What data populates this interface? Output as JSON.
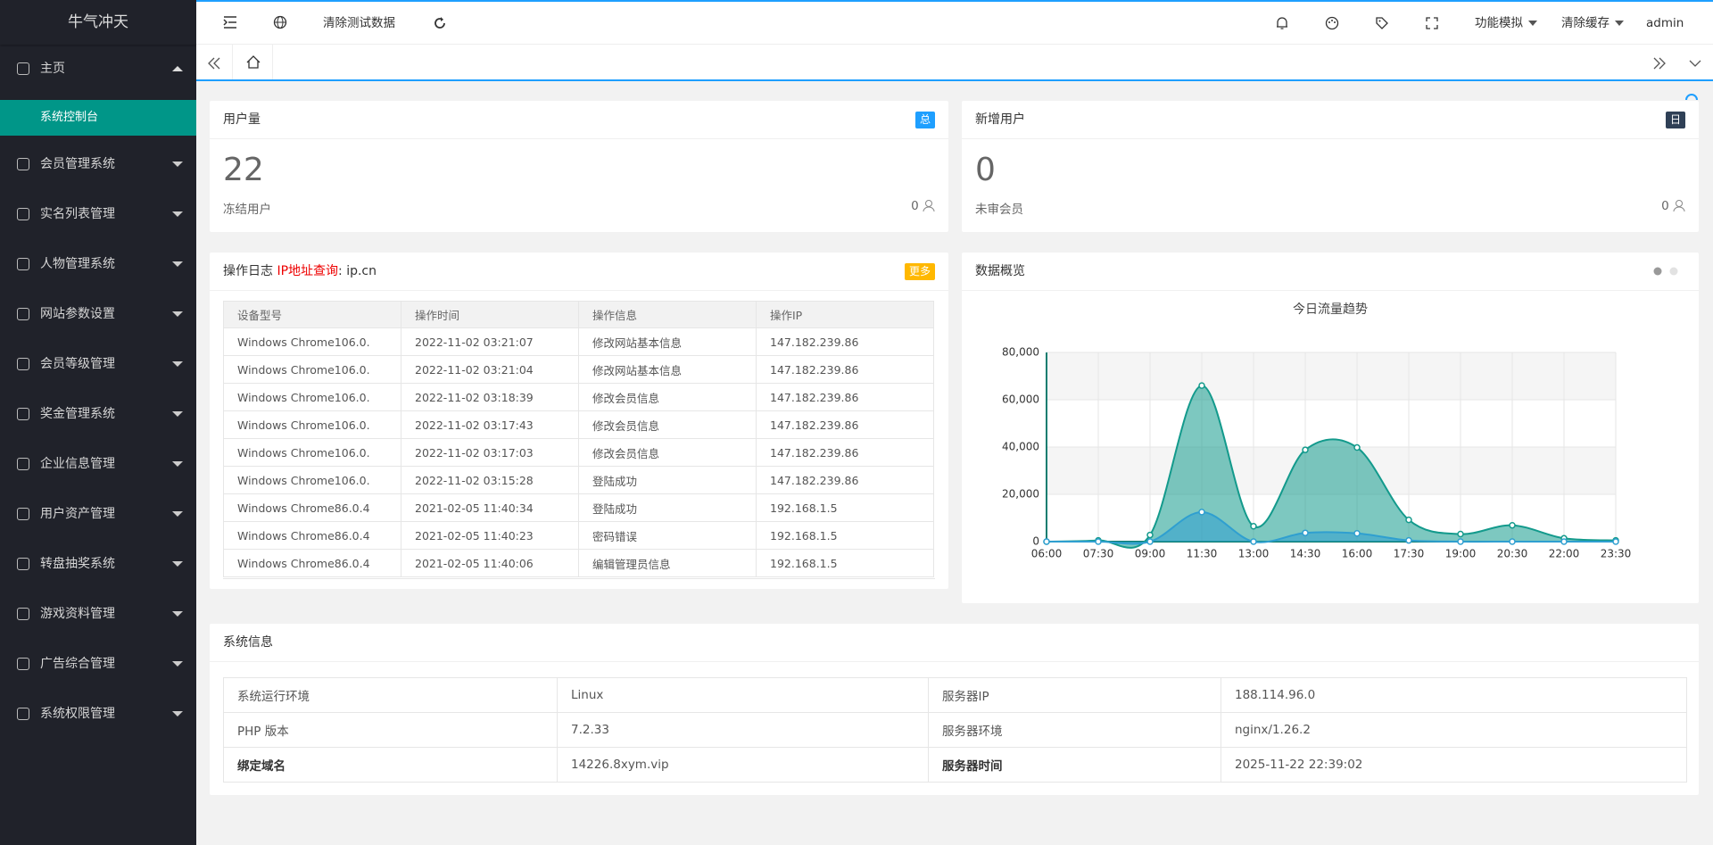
{
  "sidebar": {
    "logo": "牛气冲天",
    "home": "主页",
    "active_item": "系统控制台",
    "menu": [
      "会员管理系统",
      "实名列表管理",
      "人物管理系统",
      "网站参数设置",
      "会员等级管理",
      "奖金管理系统",
      "企业信息管理",
      "用户资产管理",
      "转盘抽奖系统",
      "游戏资料管理",
      "广告综合管理",
      "系统权限管理"
    ]
  },
  "topbar": {
    "clear_test_data": "清除测试数据",
    "function_sim": "功能模拟",
    "clear_cache": "清除缓存",
    "user": "admin"
  },
  "cards": {
    "user_count": {
      "title": "用户量",
      "badge": "总",
      "value": 22,
      "sub_label": "冻结用户",
      "sub_value": 0
    },
    "new_users": {
      "title": "新增用户",
      "badge": "日",
      "value": 0,
      "sub_label": "未审会员",
      "sub_value": 0
    }
  },
  "log": {
    "title": "操作日志",
    "ip_query": "IP地址查询",
    "ip_site": ": ip.cn",
    "more": "更多",
    "headers": [
      "设备型号",
      "操作时间",
      "操作信息",
      "操作IP"
    ],
    "rows": [
      [
        "Windows Chrome106.0.",
        "2022-11-02 03:21:07",
        "修改网站基本信息",
        "147.182.239.86"
      ],
      [
        "Windows Chrome106.0.",
        "2022-11-02 03:21:04",
        "修改网站基本信息",
        "147.182.239.86"
      ],
      [
        "Windows Chrome106.0.",
        "2022-11-02 03:18:39",
        "修改会员信息",
        "147.182.239.86"
      ],
      [
        "Windows Chrome106.0.",
        "2022-11-02 03:17:43",
        "修改会员信息",
        "147.182.239.86"
      ],
      [
        "Windows Chrome106.0.",
        "2022-11-02 03:17:03",
        "修改会员信息",
        "147.182.239.86"
      ],
      [
        "Windows Chrome106.0.",
        "2022-11-02 03:15:28",
        "登陆成功",
        "147.182.239.86"
      ],
      [
        "Windows Chrome86.0.4",
        "2021-02-05 11:40:34",
        "登陆成功",
        "192.168.1.5"
      ],
      [
        "Windows Chrome86.0.4",
        "2021-02-05 11:40:23",
        "密码错误",
        "192.168.1.5"
      ],
      [
        "Windows Chrome86.0.4",
        "2021-02-05 11:40:06",
        "编辑管理员信息",
        "192.168.1.5"
      ]
    ]
  },
  "chart_panel": {
    "title": "数据概览"
  },
  "chart_data": {
    "type": "area",
    "title": "今日流量趋势",
    "categories": [
      "06:00",
      "07:30",
      "09:00",
      "11:30",
      "13:00",
      "14:30",
      "16:00",
      "17:30",
      "19:00",
      "20:30",
      "22:00",
      "23:30"
    ],
    "series": [
      {
        "color": "#139a8c",
        "values": [
          0,
          500,
          2800,
          66000,
          6500,
          38800,
          39800,
          9200,
          3200,
          6900,
          1400,
          500
        ]
      },
      {
        "color": "#2f9fd0",
        "values": [
          0,
          0,
          0,
          12500,
          0,
          3700,
          3500,
          500,
          0,
          0,
          0,
          0
        ]
      }
    ],
    "ylim": [
      0,
      80000
    ],
    "yticks": [
      0,
      {
        "value": 20000,
        "label": "20,000"
      },
      {
        "value": 40000,
        "label": "40,000"
      },
      {
        "value": 60000,
        "label": "60,000"
      },
      {
        "value": 80000,
        "label": "80,000"
      }
    ],
    "grid": true
  },
  "sysinfo": {
    "title": "系统信息",
    "rows": [
      [
        "系统运行环境",
        "Linux",
        "服务器IP",
        "188.114.96.0"
      ],
      [
        "PHP 版本",
        "7.2.33",
        "服务器环境",
        "nginx/1.26.2"
      ],
      [
        "绑定域名",
        "14226.8xym.vip",
        "服务器时间",
        "2025-11-22 22:39:02"
      ]
    ]
  }
}
